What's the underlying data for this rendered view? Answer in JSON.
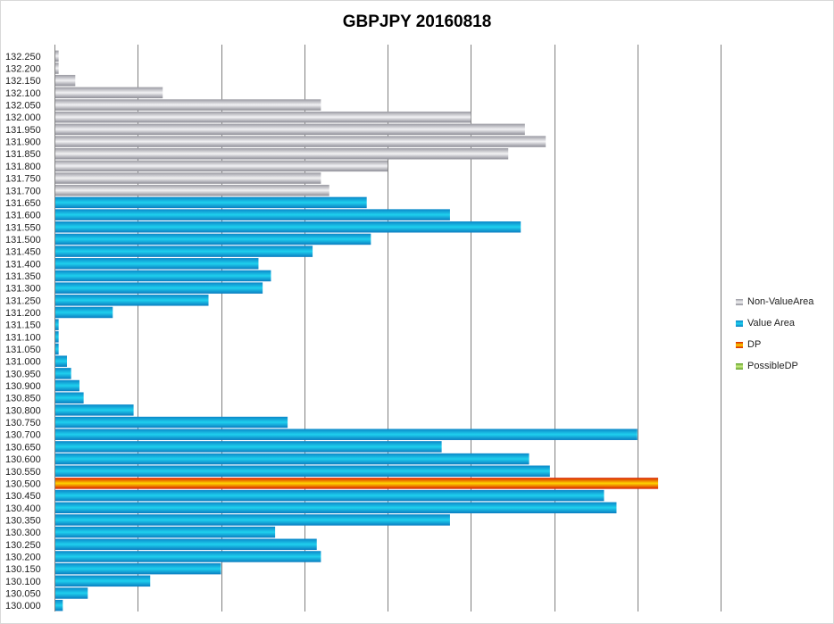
{
  "chart_data": {
    "type": "bar",
    "orientation": "horizontal",
    "title": "GBPJPY 20160818",
    "xlabel": "",
    "ylabel": "",
    "xlim": [
      0,
      800
    ],
    "grid": true,
    "legend": "right",
    "categories": [
      "132.250",
      "132.200",
      "132.150",
      "132.100",
      "132.050",
      "132.000",
      "131.950",
      "131.900",
      "131.850",
      "131.800",
      "131.750",
      "131.700",
      "131.650",
      "131.600",
      "131.550",
      "131.500",
      "131.450",
      "131.400",
      "131.350",
      "131.300",
      "131.250",
      "131.200",
      "131.150",
      "131.100",
      "131.050",
      "131.000",
      "130.950",
      "130.900",
      "130.850",
      "130.800",
      "130.750",
      "130.700",
      "130.650",
      "130.600",
      "130.550",
      "130.500",
      "130.450",
      "130.400",
      "130.350",
      "130.300",
      "130.250",
      "130.200",
      "130.150",
      "130.100",
      "130.050",
      "130.000"
    ],
    "series": [
      {
        "name": "Non-ValueArea",
        "color": "#b0b0b8",
        "values": [
          5,
          5,
          25,
          130,
          320,
          500,
          565,
          590,
          545,
          400,
          320,
          330,
          0,
          0,
          0,
          0,
          0,
          0,
          0,
          0,
          0,
          0,
          0,
          0,
          0,
          0,
          0,
          0,
          0,
          0,
          0,
          0,
          0,
          0,
          0,
          0,
          0,
          0,
          0,
          0,
          0,
          0,
          0,
          0,
          0,
          0
        ]
      },
      {
        "name": "Value Area",
        "color": "#1aa7d8",
        "values": [
          0,
          0,
          0,
          0,
          0,
          0,
          0,
          0,
          0,
          0,
          0,
          0,
          375,
          475,
          560,
          380,
          310,
          245,
          260,
          250,
          185,
          70,
          5,
          5,
          5,
          15,
          20,
          30,
          35,
          95,
          280,
          700,
          465,
          570,
          595,
          0,
          660,
          675,
          475,
          265,
          315,
          320,
          200,
          115,
          40,
          10
        ]
      },
      {
        "name": "DP",
        "color": "#f07800",
        "values": [
          0,
          0,
          0,
          0,
          0,
          0,
          0,
          0,
          0,
          0,
          0,
          0,
          0,
          0,
          0,
          0,
          0,
          0,
          0,
          0,
          0,
          0,
          0,
          0,
          0,
          0,
          0,
          0,
          0,
          0,
          0,
          0,
          0,
          0,
          0,
          725,
          0,
          0,
          0,
          0,
          0,
          0,
          0,
          0,
          0,
          0
        ]
      },
      {
        "name": "PossibleDP",
        "color": "#8cc63e",
        "values": [
          0,
          0,
          0,
          0,
          0,
          0,
          0,
          0,
          0,
          0,
          0,
          0,
          0,
          0,
          0,
          0,
          0,
          0,
          0,
          0,
          0,
          0,
          0,
          0,
          0,
          0,
          0,
          0,
          0,
          0,
          0,
          0,
          0,
          0,
          0,
          0,
          0,
          0,
          0,
          0,
          0,
          0,
          0,
          0,
          0,
          0
        ]
      }
    ]
  }
}
